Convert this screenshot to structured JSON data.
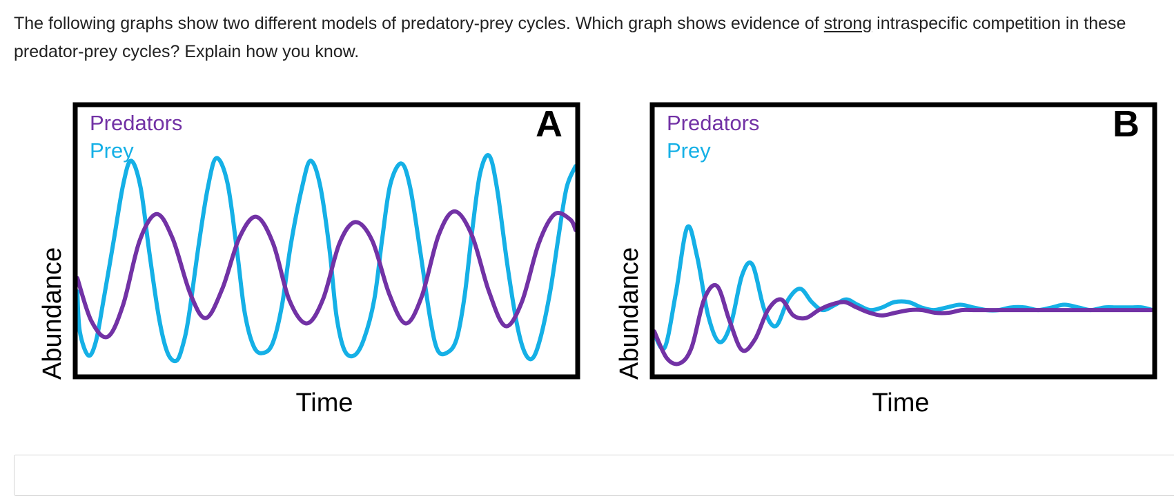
{
  "question": {
    "part1": "The following graphs show two different models of predatory-prey cycles. Which graph shows evidence of ",
    "emphasis": "strong",
    "part2": " intraspecific competition in these predator-prey cycles? Explain how you know."
  },
  "colors": {
    "predators": "#7232a5",
    "prey": "#15b0e6"
  },
  "chart_data": [
    {
      "type": "line",
      "panel_label": "A",
      "xlabel": "Time",
      "ylabel": "Abundance",
      "legend": [
        "Predators",
        "Prey"
      ],
      "legend_position": "top-left",
      "ylim": [
        0,
        100
      ],
      "series": [
        {
          "name": "Prey",
          "model": "sustained oscillation",
          "x": [
            0,
            0.5,
            2.2,
            3.7,
            5.2,
            7.3,
            9.2,
            10.8,
            12.7,
            14.5,
            16.4,
            18.1,
            19.9,
            21.2,
            22.4,
            24.4,
            26.2,
            27.9,
            30.1,
            32.0,
            33.6,
            35.5,
            37.5,
            39.3,
            41.1,
            42.8,
            45.1,
            46.8,
            48.7,
            50.6,
            52.0,
            53.6,
            55.6,
            57.5,
            59.6,
            61.2,
            62.8,
            65.0,
            66.8,
            68.9,
            70.8,
            72.3,
            74.2,
            76.1,
            77.7,
            79.2,
            80.8,
            82.6,
            84.2,
            86.3,
            88.2,
            89.8,
            91.4,
            93.0,
            94.9,
            96.6,
            98.2,
            100
          ],
          "values": [
            31,
            16,
            7,
            12,
            27,
            50,
            71,
            80,
            70,
            45,
            21,
            8,
            5,
            11,
            22,
            49,
            70,
            81,
            72,
            47,
            23,
            10,
            8,
            12,
            26,
            48,
            70,
            80,
            71,
            47,
            22,
            9,
            7,
            13,
            28,
            51,
            71,
            79,
            70,
            45,
            21,
            9,
            8,
            13,
            29,
            53,
            75,
            82,
            70,
            41,
            19,
            8,
            6,
            14,
            31,
            52,
            70,
            78
          ]
        },
        {
          "name": "Predators",
          "model": "sustained oscillation",
          "x": [
            0,
            2.8,
            6.1,
            9.2,
            12.5,
            15.9,
            19.1,
            22.7,
            25.8,
            29.1,
            32.5,
            35.9,
            39.3,
            42.5,
            46.0,
            49.3,
            52.6,
            55.8,
            59.2,
            62.6,
            65.9,
            69.1,
            72.5,
            75.7,
            79.2,
            82.6,
            85.9,
            89.2,
            92.6,
            95.8,
            98.9,
            100
          ],
          "values": [
            36,
            20,
            14,
            26,
            50,
            60,
            51,
            30,
            21,
            32,
            51,
            59,
            49,
            28,
            19,
            28,
            49,
            57,
            50,
            30,
            19,
            29,
            52,
            61,
            52,
            31,
            18,
            27,
            49,
            60,
            58,
            54
          ]
        }
      ]
    },
    {
      "type": "line",
      "panel_label": "B",
      "xlabel": "Time",
      "ylabel": "Abundance",
      "legend": [
        "Predators",
        "Prey"
      ],
      "legend_position": "top-left",
      "ylim": [
        0,
        100
      ],
      "series": [
        {
          "name": "Prey",
          "model": "damped oscillation",
          "x": [
            0,
            2.1,
            4.3,
            6.6,
            8.6,
            10.8,
            13.1,
            15.4,
            17.6,
            19.7,
            22.1,
            24.4,
            26.9,
            29.3,
            31.6,
            33.8,
            36.3,
            38.5,
            40.8,
            43.3,
            45.7,
            48.2,
            51.0,
            53.6,
            56.0,
            58.7,
            61.4,
            64.0,
            66.7,
            69.1,
            71.6,
            74.4,
            77.0,
            79.8,
            82.3,
            85.1,
            87.6,
            90.3,
            92.8,
            95.5,
            97.9,
            100
          ],
          "values": [
            15,
            10,
            30,
            55,
            44,
            22,
            12,
            19,
            37,
            41,
            24,
            18,
            28,
            32,
            27,
            24,
            26,
            28,
            26,
            24,
            25,
            27,
            27,
            25,
            24,
            25,
            26,
            25,
            24,
            24,
            25,
            25,
            24,
            25,
            26,
            25,
            24,
            25,
            25,
            25,
            25,
            24
          ]
        },
        {
          "name": "Predators",
          "model": "damped oscillation",
          "x": [
            0,
            2.5,
            5.1,
            7.5,
            10.0,
            12.6,
            15.1,
            17.6,
            20.2,
            22.8,
            25.4,
            27.9,
            30.4,
            33.0,
            35.4,
            38.2,
            40.6,
            43.2,
            45.7,
            48.4,
            51.2,
            53.8,
            56.3,
            59.1,
            61.7,
            64.4,
            66.9,
            69.7,
            72.4,
            74.9,
            77.6,
            80.2,
            82.8,
            85.5,
            88.1,
            90.7,
            93.4,
            96.0,
            98.6,
            100
          ],
          "values": [
            16,
            6,
            4,
            10,
            28,
            33,
            20,
            9,
            13,
            24,
            28,
            22,
            21,
            24,
            26,
            27,
            25,
            23,
            22,
            23,
            24,
            24,
            23,
            23,
            24,
            24,
            24,
            24,
            24,
            24,
            24,
            24,
            24,
            24,
            24,
            24,
            24,
            24,
            24,
            24
          ]
        }
      ]
    }
  ]
}
